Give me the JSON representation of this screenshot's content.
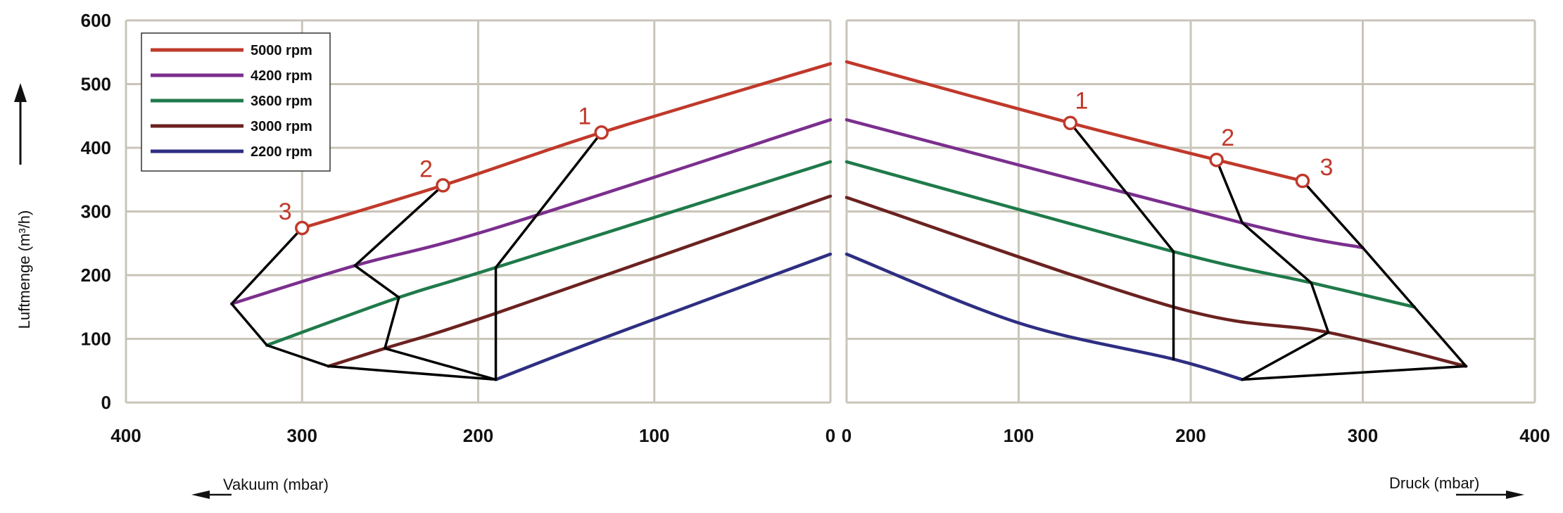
{
  "chart_data": {
    "type": "line",
    "ylabel": "Luftmenge (m³/h)",
    "ylim": [
      0,
      600
    ],
    "yticks": [
      "0",
      "100",
      "200",
      "300",
      "400",
      "500",
      "600"
    ],
    "grid": true,
    "legend_position": "top-left",
    "colors": {
      "grid": "#c9c5b8",
      "operating_lines": "#000000",
      "point_labels": "#c0392b"
    },
    "series": [
      {
        "name": "5000 rpm",
        "color": "#c0392b"
      },
      {
        "name": "4200 rpm",
        "color": "#7b2f8e"
      },
      {
        "name": "3600 rpm",
        "color": "#1f7a4a"
      },
      {
        "name": "3000 rpm",
        "color": "#6b2220"
      },
      {
        "name": "2200 rpm",
        "color": "#2e2e82"
      }
    ],
    "panels": [
      {
        "id": "vacuum",
        "xlabel": "Vakuum (mbar)",
        "xlim": [
          400,
          0
        ],
        "xticks": [
          "400",
          "300",
          "200",
          "100",
          "0"
        ],
        "curves": [
          {
            "series": 0,
            "points": [
              [
                300,
                274
              ],
              [
                220,
                341
              ],
              [
                130,
                424
              ],
              [
                0,
                532
              ]
            ]
          },
          {
            "series": 1,
            "points": [
              [
                340,
                155
              ],
              [
                270,
                215
              ],
              [
                190,
                274
              ],
              [
                0,
                444
              ]
            ]
          },
          {
            "series": 2,
            "points": [
              [
                320,
                90
              ],
              [
                245,
                165
              ],
              [
                190,
                212
              ],
              [
                0,
                378
              ]
            ]
          },
          {
            "series": 3,
            "points": [
              [
                285,
                57
              ],
              [
                253,
                85
              ],
              [
                190,
                140
              ],
              [
                0,
                324
              ]
            ]
          },
          {
            "series": 4,
            "points": [
              [
                190,
                36
              ],
              [
                130,
                100
              ],
              [
                0,
                233
              ]
            ]
          }
        ],
        "operating_lines": [
          {
            "label": "1",
            "points": [
              [
                130,
                424
              ],
              [
                190,
                212
              ],
              [
                190,
                36
              ]
            ]
          },
          {
            "label": "2",
            "points": [
              [
                220,
                341
              ],
              [
                270,
                215
              ],
              [
                245,
                165
              ],
              [
                253,
                85
              ],
              [
                190,
                36
              ]
            ]
          },
          {
            "label": "3",
            "points": [
              [
                300,
                274
              ],
              [
                340,
                155
              ],
              [
                320,
                90
              ],
              [
                285,
                57
              ],
              [
                190,
                36
              ]
            ]
          }
        ],
        "marked_points": [
          {
            "label": "1",
            "x": 130,
            "y": 424
          },
          {
            "label": "2",
            "x": 220,
            "y": 341
          },
          {
            "label": "3",
            "x": 300,
            "y": 274
          }
        ]
      },
      {
        "id": "pressure",
        "xlabel": "Druck (mbar)",
        "xlim": [
          0,
          400
        ],
        "xticks": [
          "0",
          "100",
          "200",
          "300",
          "400"
        ],
        "curves": [
          {
            "series": 0,
            "points": [
              [
                0,
                535
              ],
              [
                130,
                439
              ],
              [
                215,
                381
              ],
              [
                265,
                348
              ]
            ]
          },
          {
            "series": 1,
            "points": [
              [
                0,
                444
              ],
              [
                230,
                282
              ],
              [
                300,
                243
              ]
            ]
          },
          {
            "series": 2,
            "points": [
              [
                0,
                378
              ],
              [
                190,
                237
              ],
              [
                270,
                188
              ],
              [
                330,
                150
              ]
            ]
          },
          {
            "series": 3,
            "points": [
              [
                0,
                322
              ],
              [
                190,
                150
              ],
              [
                280,
                110
              ],
              [
                360,
                57
              ]
            ]
          },
          {
            "series": 4,
            "points": [
              [
                0,
                233
              ],
              [
                100,
                125
              ],
              [
                190,
                68
              ],
              [
                230,
                36
              ]
            ]
          }
        ],
        "operating_lines": [
          {
            "label": "1",
            "points": [
              [
                130,
                439
              ],
              [
                190,
                237
              ],
              [
                190,
                68
              ]
            ]
          },
          {
            "label": "2",
            "points": [
              [
                215,
                381
              ],
              [
                230,
                282
              ],
              [
                270,
                188
              ],
              [
                280,
                110
              ],
              [
                230,
                36
              ],
              [
                360,
                57
              ]
            ]
          },
          {
            "label": "3",
            "points": [
              [
                265,
                348
              ],
              [
                300,
                243
              ],
              [
                330,
                150
              ],
              [
                360,
                57
              ]
            ]
          }
        ],
        "marked_points": [
          {
            "label": "1",
            "x": 130,
            "y": 439
          },
          {
            "label": "2",
            "x": 215,
            "y": 381
          },
          {
            "label": "3",
            "x": 265,
            "y": 348
          }
        ]
      }
    ]
  }
}
